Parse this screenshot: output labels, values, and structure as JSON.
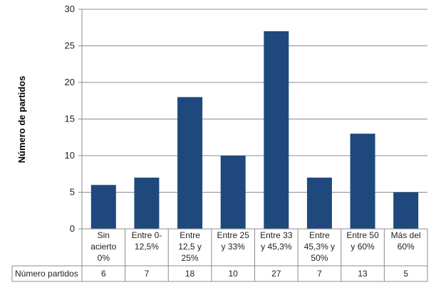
{
  "chart_data": {
    "type": "bar",
    "title": "",
    "xlabel": "",
    "ylabel": "Número de partidos",
    "ylim": [
      0,
      30
    ],
    "yticks": [
      0,
      5,
      10,
      15,
      20,
      25,
      30
    ],
    "grid": true,
    "categories": [
      [
        "Sin",
        "acierto",
        "0%"
      ],
      [
        "Entre 0-",
        "12,5%"
      ],
      [
        "Entre",
        "12,5 y",
        "25%"
      ],
      [
        "Entre 25",
        "y 33%"
      ],
      [
        "Entre 33",
        "y 45,3%"
      ],
      [
        "Entre",
        "45,3% y",
        "50%"
      ],
      [
        "Entre 50",
        "y 60%"
      ],
      [
        "Más del",
        "60%"
      ]
    ],
    "series": [
      {
        "name": "Número partidos",
        "values": [
          6,
          7,
          18,
          10,
          27,
          7,
          13,
          5
        ],
        "color": "#1f497d"
      }
    ],
    "data_table": true
  }
}
